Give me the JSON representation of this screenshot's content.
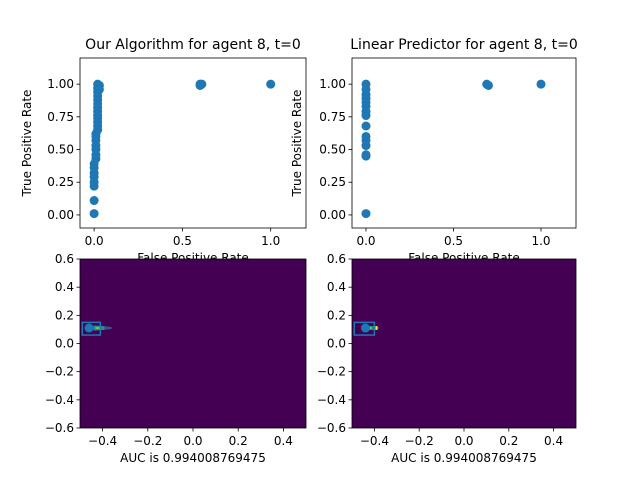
{
  "chart_data": [
    {
      "type": "scatter",
      "title": "Our Algorithm for agent 8, t=0",
      "xlabel": "False Positive Rate",
      "ylabel": "True Positive Rate",
      "xlim": [
        -0.08,
        1.2
      ],
      "ylim": [
        -0.1,
        1.2
      ],
      "xticks": [
        "0.0",
        "0.5",
        "1.0"
      ],
      "yticks": [
        "0.00",
        "0.25",
        "0.50",
        "0.75",
        "1.00"
      ],
      "color": "#1f77b4",
      "points": [
        [
          0.0,
          0.01
        ],
        [
          0.0,
          0.11
        ],
        [
          0.0,
          0.22
        ],
        [
          0.0,
          0.25
        ],
        [
          0.0,
          0.29
        ],
        [
          0.0,
          0.32
        ],
        [
          0.0,
          0.36
        ],
        [
          0.0,
          0.39
        ],
        [
          0.01,
          0.43
        ],
        [
          0.01,
          0.46
        ],
        [
          0.01,
          0.5
        ],
        [
          0.01,
          0.53
        ],
        [
          0.01,
          0.57
        ],
        [
          0.01,
          0.6
        ],
        [
          0.01,
          0.62
        ],
        [
          0.02,
          0.65
        ],
        [
          0.02,
          0.68
        ],
        [
          0.02,
          0.71
        ],
        [
          0.02,
          0.74
        ],
        [
          0.02,
          0.76
        ],
        [
          0.02,
          0.79
        ],
        [
          0.02,
          0.82
        ],
        [
          0.02,
          0.85
        ],
        [
          0.02,
          0.88
        ],
        [
          0.02,
          0.91
        ],
        [
          0.02,
          0.94
        ],
        [
          0.02,
          0.97
        ],
        [
          0.02,
          1.0
        ],
        [
          0.03,
          0.99
        ],
        [
          0.03,
          0.96
        ],
        [
          0.6,
          1.0
        ],
        [
          0.61,
          1.0
        ],
        [
          0.6,
          0.99
        ],
        [
          1.0,
          1.0
        ]
      ]
    },
    {
      "type": "scatter",
      "title": "Linear Predictor for agent 8, t=0",
      "xlabel": "False Positive Rate",
      "ylabel": "True Positive Rate",
      "xlim": [
        -0.08,
        1.2
      ],
      "ylim": [
        -0.1,
        1.2
      ],
      "xticks": [
        "0.0",
        "0.5",
        "1.0"
      ],
      "yticks": [
        "0.00",
        "0.25",
        "0.50",
        "0.75",
        "1.00"
      ],
      "color": "#1f77b4",
      "points": [
        [
          0.0,
          0.01
        ],
        [
          0.0,
          0.45
        ],
        [
          0.0,
          0.46
        ],
        [
          0.0,
          0.53
        ],
        [
          0.0,
          0.57
        ],
        [
          0.0,
          0.6
        ],
        [
          0.0,
          0.68
        ],
        [
          0.0,
          0.76
        ],
        [
          0.0,
          0.79
        ],
        [
          0.0,
          0.83
        ],
        [
          0.0,
          0.86
        ],
        [
          0.0,
          0.89
        ],
        [
          0.0,
          0.92
        ],
        [
          0.0,
          0.96
        ],
        [
          0.0,
          1.0
        ],
        [
          0.69,
          1.0
        ],
        [
          0.7,
          0.99
        ],
        [
          1.0,
          1.0
        ]
      ]
    },
    {
      "type": "heatmap",
      "xlabel": "AUC is 0.994008769475",
      "xlim": [
        -0.5,
        0.5
      ],
      "ylim": [
        -0.6,
        0.6
      ],
      "xticks": [
        "−0.4",
        "−0.2",
        "0.0",
        "0.2",
        "0.4"
      ],
      "yticks": [
        "−0.6",
        "−0.4",
        "−0.2",
        "0.0",
        "0.2",
        "0.4",
        "0.6"
      ],
      "background_color": "#440154",
      "hotspot_colors": [
        "#3b528b",
        "#21918c",
        "#5ec962"
      ],
      "marker": [
        -0.46,
        0.11
      ],
      "box": [
        -0.49,
        0.06,
        -0.41,
        0.15
      ],
      "streak": [
        -0.44,
        -0.36,
        0.11
      ]
    },
    {
      "type": "heatmap",
      "xlabel": "AUC is 0.994008769475",
      "xlim": [
        -0.5,
        0.5
      ],
      "ylim": [
        -0.6,
        0.6
      ],
      "xticks": [
        "−0.4",
        "−0.2",
        "0.0",
        "0.2",
        "0.4"
      ],
      "yticks": [
        "−0.6",
        "−0.4",
        "−0.2",
        "0.0",
        "0.2",
        "0.4",
        "0.6"
      ],
      "background_color": "#440154",
      "hotspot_colors": [
        "#3b528b",
        "#21918c",
        "#5ec962",
        "#fde725"
      ],
      "marker": [
        -0.44,
        0.11
      ],
      "box": [
        -0.49,
        0.06,
        -0.4,
        0.15
      ],
      "streak": [
        -0.44,
        -0.38,
        0.11
      ]
    }
  ]
}
